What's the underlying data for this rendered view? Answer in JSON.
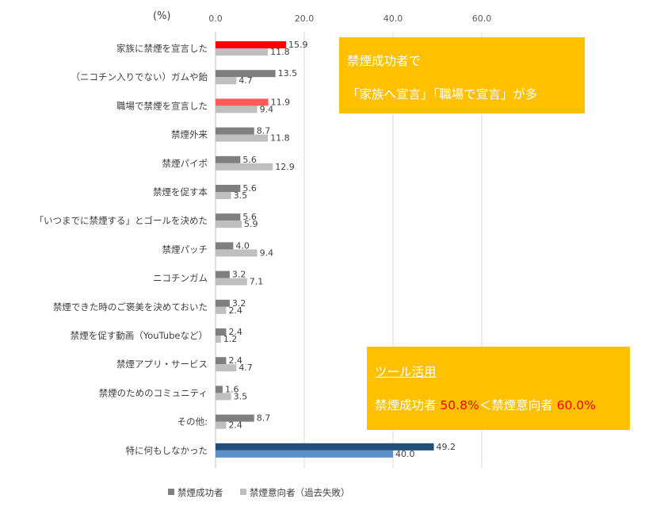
{
  "chart_data": {
    "type": "bar",
    "orientation": "horizontal",
    "unit": "(%)",
    "xlim": [
      0,
      60
    ],
    "ticks": [
      "0.0",
      "20.0",
      "40.0",
      "60.0"
    ],
    "tick_values": [
      0,
      20,
      40,
      60
    ],
    "categories": [
      "家族に禁煙を宣言した",
      "（ニコチン入りでない）ガムや飴",
      "職場で禁煙を宣言した",
      "禁煙外来",
      "禁煙パイポ",
      "禁煙を促す本",
      "「いつまでに禁煙する」とゴールを決めた",
      "禁煙パッチ",
      "ニコチンガム",
      "禁煙できた時のご褒美を決めておいた",
      "禁煙を促す動画（YouTubeなど）",
      "禁煙アプリ・サービス",
      "禁煙のためのコミュニティ",
      "その他:",
      "特に何もしなかった"
    ],
    "series": [
      {
        "name": "禁煙成功者",
        "color": "#7f7f7f",
        "values": [
          15.9,
          13.5,
          11.9,
          8.7,
          5.6,
          5.6,
          5.6,
          4.0,
          3.2,
          3.2,
          2.4,
          2.4,
          1.6,
          8.7,
          49.2
        ],
        "labels": [
          "15.9",
          "13.5",
          "11.9",
          "8.7",
          "5.6",
          "5.6",
          "5.6",
          "4.0",
          "3.2",
          "3.2",
          "2.4",
          "2.4",
          "1.6",
          "8.7",
          "49.2"
        ]
      },
      {
        "name": "禁煙意向者（過去失敗）",
        "color": "#bfbfbf",
        "values": [
          11.8,
          4.7,
          9.4,
          11.8,
          12.9,
          3.5,
          5.9,
          9.4,
          7.1,
          2.4,
          1.2,
          4.7,
          3.5,
          2.4,
          40.0
        ],
        "labels": [
          "11.8",
          "4.7",
          "9.4",
          "11.8",
          "12.9",
          "3.5",
          "5.9",
          "9.4",
          "7.1",
          "2.4",
          "1.2",
          "4.7",
          "3.5",
          "2.4",
          "40.0"
        ]
      }
    ],
    "highlight_colors": {
      "0": [
        "#ff0000",
        "#bfbfbf"
      ],
      "2": [
        "#ff5b5b",
        "#bfbfbf"
      ],
      "14": [
        "#1f4e79",
        "#5b8fc7"
      ]
    },
    "grid": true,
    "legend_position": "bottom"
  },
  "callouts": {
    "first": {
      "line1": "禁煙成功者で",
      "line2": "「家族へ宣言」「職場で宣言」が多"
    },
    "second": {
      "heading": "ツール活用",
      "part1": "禁煙成功者 ",
      "value1": "50.8%",
      "part2": "＜禁煙意向者 ",
      "value2": "60.0%"
    }
  }
}
